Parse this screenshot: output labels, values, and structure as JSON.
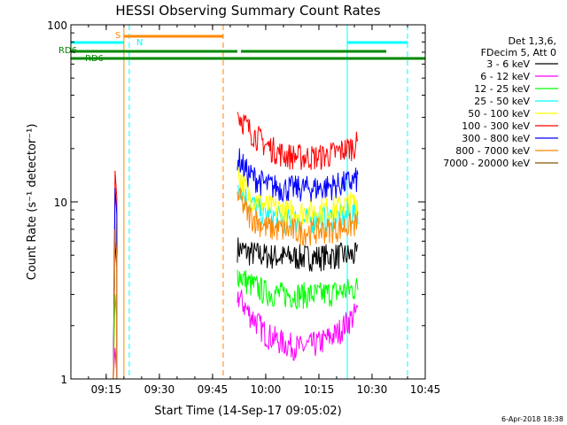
{
  "chart_data": {
    "type": "line",
    "title": "HESSI Observing Summary Count Rates",
    "xlabel": "Start Time (14-Sep-17 09:05:02)",
    "ylabel": "Count Rate (s⁻¹ detector⁻¹)",
    "yscale": "log",
    "ylim": [
      1,
      100
    ],
    "xlim": [
      "09:05:02",
      "10:45:00"
    ],
    "x_ticks": [
      "09:15",
      "09:30",
      "09:45",
      "10:00",
      "10:15",
      "10:30",
      "10:45"
    ],
    "y_ticks": [
      "1",
      "10",
      "100"
    ],
    "grid": false,
    "legend_position": "top-right",
    "legend_header": [
      "Det 1,3,6,",
      "FDecim 5, Att 0"
    ],
    "series": [
      {
        "name": "3 - 6 keV",
        "color": "#000000",
        "x": [
          "09:17:00",
          "09:17:30",
          "09:18:00",
          "09:52:00",
          "09:55:00",
          "10:00:00",
          "10:05:00",
          "10:10:00",
          "10:15:00",
          "10:20:00",
          "10:24:00",
          "10:26:00"
        ],
        "y": [
          1,
          6,
          1,
          5.5,
          5.2,
          5.0,
          4.9,
          4.9,
          4.9,
          5.0,
          5.0,
          5.0
        ]
      },
      {
        "name": "6 - 12 keV",
        "color": "#ff00ff",
        "x": [
          "09:17:00",
          "09:17:30",
          "09:18:00",
          "09:52:00",
          "09:55:00",
          "10:00:00",
          "10:05:00",
          "10:10:00",
          "10:15:00",
          "10:20:00",
          "10:24:00",
          "10:26:00"
        ],
        "y": [
          1,
          1.5,
          1,
          3.0,
          2.4,
          1.8,
          1.6,
          1.5,
          1.6,
          1.8,
          2.2,
          2.4
        ]
      },
      {
        "name": "12 - 25 keV",
        "color": "#00ff00",
        "x": [
          "09:17:00",
          "09:17:30",
          "09:18:00",
          "09:52:00",
          "09:55:00",
          "10:00:00",
          "10:05:00",
          "10:10:00",
          "10:15:00",
          "10:20:00",
          "10:24:00",
          "10:26:00"
        ],
        "y": [
          1,
          3,
          1,
          4.0,
          3.5,
          3.1,
          3.0,
          3.0,
          3.0,
          3.1,
          3.2,
          3.3
        ]
      },
      {
        "name": "25 - 50 keV",
        "color": "#00ffff",
        "x": [
          "09:17:00",
          "09:17:30",
          "09:18:00",
          "09:52:00",
          "09:55:00",
          "10:00:00",
          "10:05:00",
          "10:10:00",
          "10:15:00",
          "10:20:00",
          "10:24:00",
          "10:26:00"
        ],
        "y": [
          1,
          8,
          1,
          13,
          10,
          8.5,
          8.0,
          7.8,
          8.0,
          8.2,
          8.5,
          9.0
        ]
      },
      {
        "name": "50 - 100 keV",
        "color": "#ffff00",
        "x": [
          "09:17:00",
          "09:17:30",
          "09:18:00",
          "09:52:00",
          "09:55:00",
          "10:00:00",
          "10:05:00",
          "10:10:00",
          "10:15:00",
          "10:20:00",
          "10:24:00",
          "10:26:00"
        ],
        "y": [
          1,
          9,
          1,
          15,
          11,
          9.5,
          9.0,
          8.8,
          9.0,
          9.3,
          9.8,
          10.2
        ]
      },
      {
        "name": "100 - 300 keV",
        "color": "#ff0000",
        "x": [
          "09:17:00",
          "09:17:30",
          "09:18:00",
          "09:52:00",
          "09:55:00",
          "10:00:00",
          "10:05:00",
          "10:10:00",
          "10:15:00",
          "10:20:00",
          "10:24:00",
          "10:26:00"
        ],
        "y": [
          1,
          15,
          1,
          32,
          26,
          21,
          18.5,
          18,
          18,
          19,
          20.5,
          21.5
        ]
      },
      {
        "name": "300 - 800 keV",
        "color": "#0000ff",
        "x": [
          "09:17:00",
          "09:17:30",
          "09:18:00",
          "09:52:00",
          "09:55:00",
          "10:00:00",
          "10:05:00",
          "10:10:00",
          "10:15:00",
          "10:20:00",
          "10:24:00",
          "10:26:00"
        ],
        "y": [
          1,
          12,
          1,
          18,
          14.5,
          12.5,
          12,
          12,
          12,
          12.5,
          13,
          13.5
        ]
      },
      {
        "name": "800 - 7000 keV",
        "color": "#ff8800",
        "x": [
          "09:17:00",
          "09:17:30",
          "09:18:00",
          "09:52:00",
          "09:55:00",
          "10:00:00",
          "10:05:00",
          "10:10:00",
          "10:15:00",
          "10:20:00",
          "10:24:00",
          "10:26:00"
        ],
        "y": [
          1,
          7,
          1,
          11,
          8.5,
          7.2,
          7.0,
          6.8,
          6.9,
          7.1,
          7.4,
          7.6
        ]
      },
      {
        "name": "7000 - 20000 keV",
        "color": "#885500",
        "x": [],
        "y": []
      }
    ],
    "annotations": [
      {
        "label": "S",
        "color": "#ff8800",
        "bar_start": "09:20:00",
        "bar_end": "09:48:00"
      },
      {
        "label": "N",
        "color": "#00ffff",
        "bar_start": "09:05:02",
        "bar_end": "09:20:00"
      },
      {
        "label": "",
        "color": "#00ffff",
        "bar_start": "10:23:00",
        "bar_end": "10:40:00"
      },
      {
        "label": "RD6",
        "color": "#008800",
        "bar_start": "09:05:02",
        "bar_end": "09:52:00"
      },
      {
        "label": "RD6",
        "color": "#008800",
        "bar_start": "09:05:02",
        "bar_end": "10:40:00"
      }
    ],
    "vertical_markers": [
      {
        "time": "09:20:00",
        "color": "#ff8800",
        "style": "solid"
      },
      {
        "time": "09:05:02",
        "color": "#00ffff",
        "style": "solid"
      },
      {
        "time": "09:21:30",
        "color": "#00ffff",
        "style": "dashed"
      },
      {
        "time": "09:48:00",
        "color": "#ff8800",
        "style": "dashed"
      },
      {
        "time": "10:23:00",
        "color": "#00ffff",
        "style": "solid"
      },
      {
        "time": "10:40:00",
        "color": "#00ffff",
        "style": "dashed"
      }
    ],
    "footer_date": "6-Apr-2018 18:38"
  }
}
